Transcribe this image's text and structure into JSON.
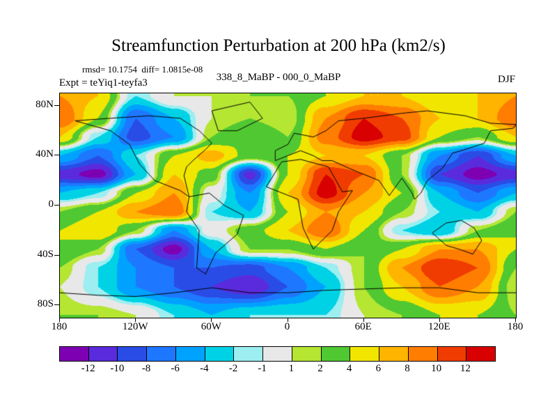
{
  "header": {
    "title": "Streamfunction Perturbation at 200 hPa (km2/s)",
    "stats": "rmsd= 10.1754  diff= 1.0815e-08",
    "expt": "Expt = teYiq1-teyfa3",
    "comparison": "338_8_MaBP - 000_0_MaBP",
    "season": "DJF"
  },
  "chart_data": {
    "type": "heatmap",
    "title": "Streamfunction Perturbation at 200 hPa (km2/s)",
    "subtitle": "338_8_MaBP - 000_0_MaBP",
    "season": "DJF",
    "experiment": "teYiq1-teyfa3",
    "rmsd": 10.1754,
    "diff": "1.0815e-08",
    "units": "km2/s",
    "x": [
      -180,
      -150,
      -120,
      -90,
      -60,
      -30,
      0,
      30,
      60,
      90,
      120,
      150,
      180
    ],
    "y": [
      88,
      70,
      55,
      40,
      25,
      10,
      -5,
      -20,
      -35,
      -50,
      -65,
      -88
    ],
    "values": [
      [
        8,
        6,
        -2,
        1,
        1,
        2,
        2,
        4,
        6,
        6,
        4,
        6,
        8
      ],
      [
        10,
        4,
        -8,
        -4,
        1,
        2,
        1,
        8,
        12,
        10,
        6,
        6,
        10
      ],
      [
        6,
        -2,
        -9,
        -6,
        2,
        4,
        2,
        9,
        13,
        11,
        4,
        2,
        6
      ],
      [
        -4,
        -8,
        -2,
        4,
        7,
        3,
        4,
        6,
        6,
        2,
        -6,
        -10,
        -4
      ],
      [
        -11,
        -13,
        -4,
        6,
        3,
        -11,
        4,
        12,
        10,
        2,
        -10,
        -13,
        -11
      ],
      [
        -4,
        -2,
        4,
        8,
        0,
        -6,
        6,
        13,
        8,
        4,
        -4,
        -8,
        -4
      ],
      [
        2,
        4,
        8,
        10,
        -2,
        -4,
        4,
        8,
        6,
        2,
        -2,
        -4,
        2
      ],
      [
        4,
        6,
        2,
        -6,
        0,
        3,
        6,
        10,
        4,
        -2,
        -4,
        2,
        4
      ],
      [
        4,
        2,
        -8,
        -13,
        -4,
        2,
        2,
        4,
        2,
        4,
        8,
        8,
        4
      ],
      [
        2,
        -2,
        -6,
        -8,
        -8,
        -9,
        -6,
        -2,
        2,
        8,
        12,
        10,
        2
      ],
      [
        1,
        -2,
        -6,
        -8,
        -10,
        -12,
        -8,
        -4,
        2,
        6,
        10,
        8,
        1
      ],
      [
        2,
        2,
        1,
        -2,
        -4,
        -2,
        -2,
        -2,
        1,
        2,
        4,
        4,
        2
      ]
    ],
    "levels": [
      -12,
      -10,
      -8,
      -6,
      -4,
      -2,
      -1,
      1,
      2,
      4,
      6,
      8,
      10,
      12
    ],
    "colors": [
      "#7d00b3",
      "#5a2bdc",
      "#2a4ce6",
      "#1e78ff",
      "#00a2ff",
      "#00d2e6",
      "#9ceef0",
      "#e8e8e8",
      "#b4e632",
      "#50c832",
      "#f0e600",
      "#ffb400",
      "#ff7d00",
      "#f03c00",
      "#d80000"
    ],
    "colorbar_labels": [
      "-12",
      "-10",
      "-8",
      "-6",
      "-4",
      "-2",
      "-1",
      "1",
      "2",
      "4",
      "6",
      "8",
      "10",
      "12"
    ],
    "xticks": [
      "180",
      "120W",
      "60W",
      "0",
      "60E",
      "120E",
      "180"
    ],
    "xtick_positions": [
      -180,
      -120,
      -60,
      0,
      60,
      120,
      180
    ],
    "yticks": [
      "80N",
      "40N",
      "0",
      "40S",
      "80S"
    ],
    "ytick_positions": [
      80,
      40,
      0,
      -40,
      -80
    ],
    "lon_range": [
      -180,
      180
    ],
    "lat_range": [
      -90,
      90
    ],
    "grid": false,
    "legend_position": "bottom-colorbar"
  },
  "coastlines": [
    [
      [
        -168,
        68
      ],
      [
        -140,
        60
      ],
      [
        -125,
        49
      ],
      [
        -117,
        33
      ],
      [
        -105,
        20
      ],
      [
        -95,
        16
      ],
      [
        -85,
        12
      ],
      [
        -78,
        7
      ],
      [
        -82,
        24
      ],
      [
        -80,
        31
      ],
      [
        -75,
        36
      ],
      [
        -65,
        45
      ],
      [
        -60,
        50
      ],
      [
        -70,
        60
      ],
      [
        -85,
        70
      ],
      [
        -110,
        72
      ],
      [
        -140,
        70
      ],
      [
        -168,
        68
      ]
    ],
    [
      [
        -78,
        7
      ],
      [
        -62,
        10
      ],
      [
        -50,
        0
      ],
      [
        -35,
        -8
      ],
      [
        -40,
        -23
      ],
      [
        -57,
        -38
      ],
      [
        -65,
        -55
      ],
      [
        -72,
        -50
      ],
      [
        -70,
        -20
      ],
      [
        -80,
        -5
      ],
      [
        -78,
        7
      ]
    ],
    [
      [
        -55,
        60
      ],
      [
        -40,
        60
      ],
      [
        -20,
        70
      ],
      [
        -30,
        83
      ],
      [
        -60,
        76
      ],
      [
        -55,
        60
      ]
    ],
    [
      [
        -17,
        15
      ],
      [
        -5,
        35
      ],
      [
        10,
        37
      ],
      [
        32,
        31
      ],
      [
        43,
        11
      ],
      [
        51,
        12
      ],
      [
        40,
        -5
      ],
      [
        35,
        -20
      ],
      [
        20,
        -35
      ],
      [
        12,
        -18
      ],
      [
        8,
        5
      ],
      [
        -17,
        15
      ]
    ],
    [
      [
        -10,
        36
      ],
      [
        -10,
        44
      ],
      [
        0,
        49
      ],
      [
        5,
        58
      ],
      [
        20,
        55
      ],
      [
        30,
        60
      ],
      [
        40,
        68
      ],
      [
        60,
        70
      ],
      [
        90,
        74
      ],
      [
        110,
        76
      ],
      [
        140,
        72
      ],
      [
        160,
        66
      ],
      [
        180,
        65
      ],
      [
        178,
        62
      ],
      [
        160,
        60
      ],
      [
        155,
        50
      ],
      [
        140,
        45
      ],
      [
        130,
        42
      ],
      [
        122,
        30
      ],
      [
        110,
        20
      ],
      [
        105,
        10
      ],
      [
        100,
        5
      ],
      [
        98,
        10
      ],
      [
        90,
        22
      ],
      [
        80,
        8
      ],
      [
        72,
        20
      ],
      [
        60,
        25
      ],
      [
        55,
        27
      ],
      [
        48,
        30
      ],
      [
        35,
        36
      ],
      [
        27,
        36
      ],
      [
        20,
        40
      ],
      [
        10,
        44
      ],
      [
        0,
        40
      ],
      [
        -10,
        36
      ]
    ],
    [
      [
        114,
        -22
      ],
      [
        125,
        -14
      ],
      [
        137,
        -12
      ],
      [
        147,
        -18
      ],
      [
        153,
        -28
      ],
      [
        146,
        -39
      ],
      [
        135,
        -35
      ],
      [
        125,
        -32
      ],
      [
        114,
        -22
      ]
    ],
    [
      [
        -180,
        -70
      ],
      [
        -150,
        -72
      ],
      [
        -120,
        -73
      ],
      [
        -90,
        -70
      ],
      [
        -60,
        -66
      ],
      [
        -30,
        -70
      ],
      [
        0,
        -70
      ],
      [
        30,
        -68
      ],
      [
        60,
        -67
      ],
      [
        90,
        -66
      ],
      [
        120,
        -66
      ],
      [
        150,
        -70
      ],
      [
        180,
        -70
      ]
    ]
  ]
}
